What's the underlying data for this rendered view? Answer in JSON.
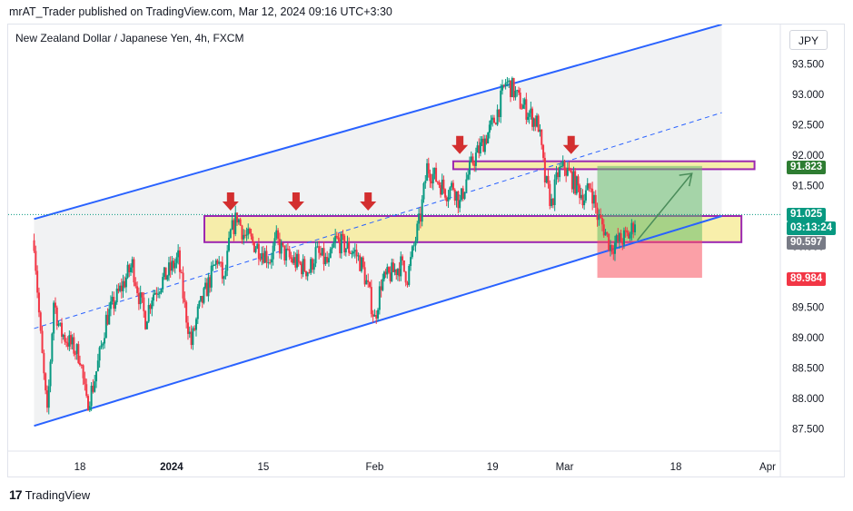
{
  "header": {
    "publisher_line": "mrAT_Trader published on TradingView.com, Mar 12, 2024 09:16 UTC+3:30"
  },
  "symbol": {
    "title": "New Zealand Dollar / Japanese Yen, 4h, FXCM",
    "currency": "JPY"
  },
  "footer": {
    "logo_text": "TradingView",
    "logo_mark": "17"
  },
  "price_tags": {
    "target": {
      "value": "91.823",
      "color": "#2e7d32"
    },
    "last": {
      "value": "91.025",
      "countdown": "03:13:24",
      "color": "#089981"
    },
    "entry": {
      "value": "90.597",
      "color": "#787b86"
    },
    "stop": {
      "value": "89.984",
      "color": "#f23645"
    }
  },
  "colors": {
    "bull": "#089981",
    "bear": "#f23645",
    "channel": "#2962ff",
    "zone_fill": "#f7ec9c",
    "zone_border": "#9c27b0",
    "profit_fill": "#66bb6a",
    "loss_fill": "#f7525f",
    "arrow_down": "#d32f2f"
  },
  "chart_data": {
    "type": "candlestick",
    "symbol": "NZDJPY",
    "interval": "4h",
    "y_ticks": [
      "93.500",
      "93.000",
      "92.500",
      "92.000",
      "91.500",
      "91.000",
      "90.500",
      "90.000",
      "89.500",
      "89.000",
      "88.500",
      "88.000",
      "87.500"
    ],
    "y_range": [
      87.2,
      93.9
    ],
    "x_ticks": [
      "18",
      "2024",
      "15",
      "Feb",
      "19",
      "Mar",
      "18",
      "Apr"
    ],
    "price_path": [
      [
        "2023-12-11",
        90.6
      ],
      [
        "2023-12-12",
        89.0
      ],
      [
        "2023-12-13",
        87.7
      ],
      [
        "2023-12-14",
        89.6
      ],
      [
        "2023-12-15",
        89.1
      ],
      [
        "2023-12-18",
        88.7
      ],
      [
        "2023-12-19",
        87.9
      ],
      [
        "2023-12-20",
        88.2
      ],
      [
        "2023-12-21",
        88.7
      ],
      [
        "2023-12-22",
        89.3
      ],
      [
        "2023-12-26",
        90.2
      ],
      [
        "2023-12-27",
        89.7
      ],
      [
        "2023-12-28",
        89.3
      ],
      [
        "2023-12-29",
        89.7
      ],
      [
        "2024-01-02",
        90.3
      ],
      [
        "2024-01-03",
        89.5
      ],
      [
        "2024-01-04",
        88.9
      ],
      [
        "2024-01-05",
        89.4
      ],
      [
        "2024-01-08",
        90.3
      ],
      [
        "2024-01-09",
        89.9
      ],
      [
        "2024-01-10",
        90.7
      ],
      [
        "2024-01-11",
        91.0
      ],
      [
        "2024-01-12",
        90.7
      ],
      [
        "2024-01-15",
        90.4
      ],
      [
        "2024-01-16",
        90.3
      ],
      [
        "2024-01-17",
        90.6
      ],
      [
        "2024-01-18",
        90.4
      ],
      [
        "2024-01-19",
        90.3
      ],
      [
        "2024-01-22",
        90.1
      ],
      [
        "2024-01-23",
        90.4
      ],
      [
        "2024-01-24",
        90.3
      ],
      [
        "2024-01-25",
        90.2
      ],
      [
        "2024-01-26",
        90.6
      ],
      [
        "2024-01-29",
        90.4
      ],
      [
        "2024-01-30",
        90.2
      ],
      [
        "2024-01-31",
        89.8
      ],
      [
        "2024-02-01",
        89.3
      ],
      [
        "2024-02-02",
        89.9
      ],
      [
        "2024-02-05",
        90.2
      ],
      [
        "2024-02-06",
        90.0
      ],
      [
        "2024-02-07",
        90.5
      ],
      [
        "2024-02-08",
        91.0
      ],
      [
        "2024-02-09",
        91.8
      ],
      [
        "2024-02-12",
        91.4
      ],
      [
        "2024-02-13",
        91.5
      ],
      [
        "2024-02-14",
        91.2
      ],
      [
        "2024-02-15",
        91.6
      ],
      [
        "2024-02-16",
        91.9
      ],
      [
        "2024-02-19",
        92.5
      ],
      [
        "2024-02-20",
        92.8
      ],
      [
        "2024-02-21",
        93.2
      ],
      [
        "2024-02-22",
        93.1
      ],
      [
        "2024-02-23",
        92.9
      ],
      [
        "2024-02-26",
        92.5
      ],
      [
        "2024-02-27",
        91.6
      ],
      [
        "2024-02-28",
        91.2
      ],
      [
        "2024-02-29",
        91.7
      ],
      [
        "2024-03-01",
        91.8
      ],
      [
        "2024-03-04",
        91.3
      ],
      [
        "2024-03-05",
        91.5
      ],
      [
        "2024-03-06",
        91.0
      ],
      [
        "2024-03-07",
        90.8
      ],
      [
        "2024-03-08",
        90.5
      ],
      [
        "2024-03-11",
        90.7
      ],
      [
        "2024-03-12",
        91.025
      ]
    ],
    "channel": {
      "upper": [
        [
          "2023-12-11",
          90.95
        ],
        [
          "2024-03-25",
          94.15
        ]
      ],
      "lower": [
        [
          "2023-12-11",
          87.55
        ],
        [
          "2024-03-25",
          91.0
        ]
      ],
      "mid": [
        [
          "2023-12-11",
          89.15
        ],
        [
          "2024-03-25",
          92.7
        ]
      ]
    },
    "zones": [
      {
        "from": "2024-02-13",
        "to": "2024-03-30",
        "top": 91.9,
        "bottom": 91.77
      },
      {
        "from": "2024-01-06",
        "to": "2024-03-28",
        "top": 91.0,
        "bottom": 90.57
      }
    ],
    "arrows": [
      "2024-01-10",
      "2024-01-20",
      "2024-01-31",
      "2024-02-14",
      "2024-03-02"
    ],
    "position": {
      "from": "2024-03-06",
      "to": "2024-03-22",
      "entry": 90.597,
      "target": 91.823,
      "stop": 89.984
    }
  }
}
